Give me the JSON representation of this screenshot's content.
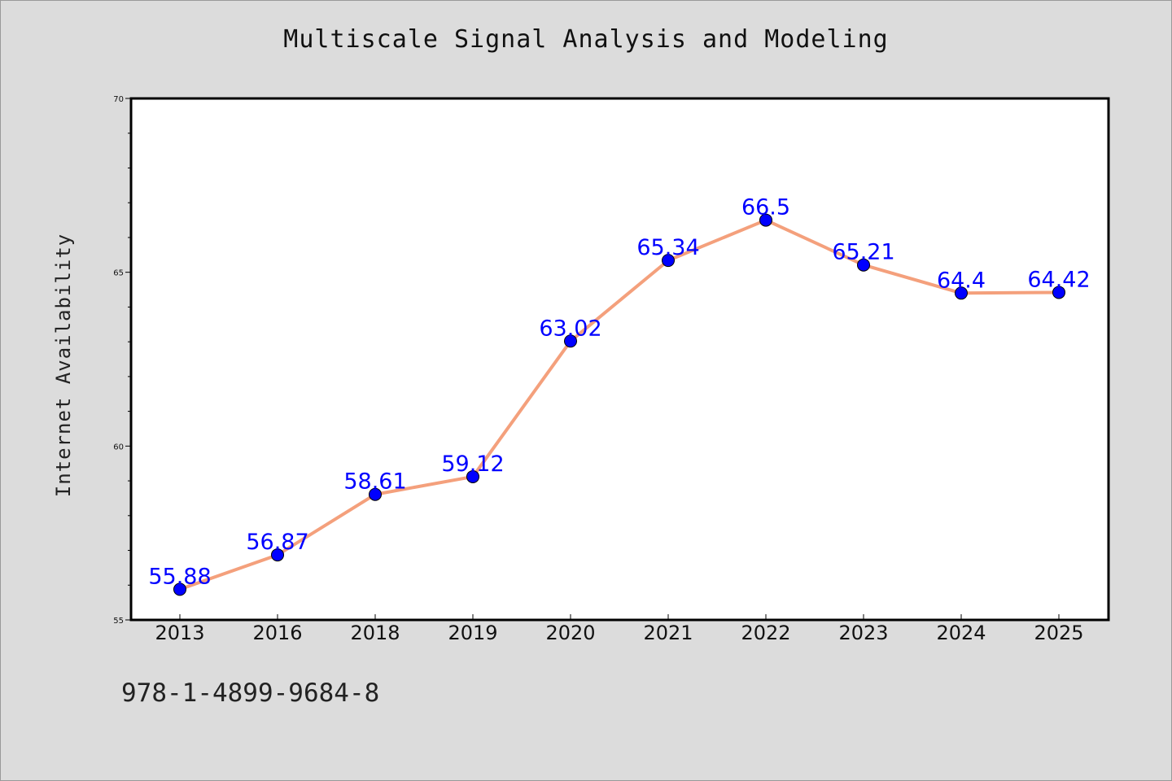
{
  "chart_data": {
    "type": "line",
    "title": "Multiscale Signal Analysis and Modeling",
    "xlabel": "",
    "ylabel": "Internet Availability",
    "categories": [
      "2013",
      "2016",
      "2018",
      "2019",
      "2020",
      "2021",
      "2022",
      "2023",
      "2024",
      "2025"
    ],
    "series": [
      {
        "values": [
          55.88,
          56.87,
          58.61,
          59.12,
          63.02,
          65.34,
          66.5,
          65.21,
          64.4,
          64.42
        ],
        "labels": [
          "55.88",
          "56.87",
          "58.61",
          "59.12",
          "63.02",
          "65.34",
          "66.5",
          "65.21",
          "64.4",
          "64.42"
        ]
      }
    ],
    "ylim": [
      55,
      70
    ],
    "y_ticks": [
      55,
      60,
      65,
      70
    ],
    "y_tick_labels": [
      "55",
      "60",
      "65",
      "70"
    ],
    "grid": false,
    "line_color": "#f4a07c",
    "marker_color": "#0000ff",
    "label_color": "#0000ff"
  },
  "footnote": "978-1-4899-9684-8"
}
